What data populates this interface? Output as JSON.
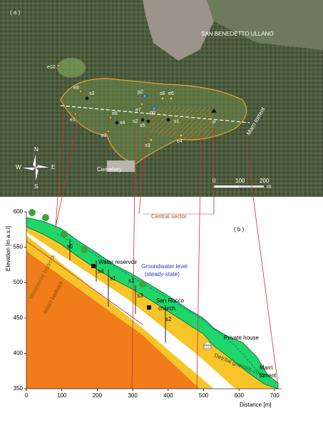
{
  "panel_a": {
    "label": "( a )",
    "town": "SAN BENEDETTO  ULLANO",
    "cemetery": "Cemetery",
    "torrent": "Marri torrent",
    "points": [
      "e10",
      "e9",
      "s3",
      "e1",
      "e8",
      "s4",
      "e2",
      "p2",
      "e7",
      "s2",
      "p0",
      "s5",
      "s6",
      "e6",
      "s1",
      "e3",
      "e4",
      "P"
    ],
    "compass": {
      "n": "N",
      "s": "S",
      "e": "E",
      "w": "W"
    },
    "scale": {
      "ticks": [
        "0",
        "100",
        "200"
      ],
      "unit": "m"
    }
  },
  "panel_b": {
    "label": "( b )",
    "sector": "Central sector",
    "ylabel": "Elevation [m a.s.l]",
    "xlabel": "Distance [m]",
    "xlim": [
      0,
      700
    ],
    "xticks": [
      0,
      100,
      200,
      300,
      400,
      500,
      600,
      700
    ],
    "ylim": [
      350,
      600
    ],
    "yticks": [
      350,
      400,
      450,
      500,
      550,
      600
    ],
    "water_reservoir": "Water reservoir",
    "groundwater": [
      "Groundwater level",
      "(steady-state)"
    ],
    "church": [
      "San Rocco",
      "church"
    ],
    "house": "Private house",
    "torrent": [
      "Marri",
      "torrent"
    ],
    "weathered": "Weathered bedrock",
    "intact": "Intact bedrock",
    "cover": "Detrital gneissic cover",
    "wells": [
      "s5",
      "s4",
      "s1",
      "s3",
      "s2",
      "s1"
    ]
  }
}
